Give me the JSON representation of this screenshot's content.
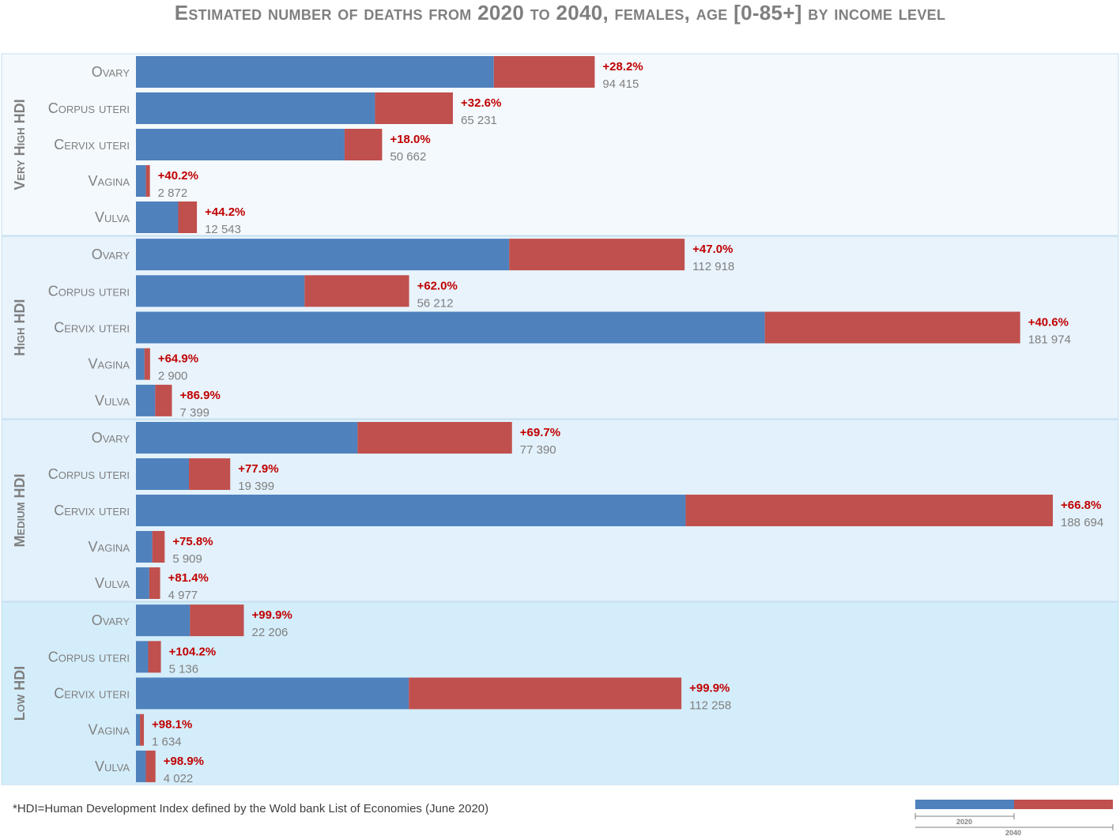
{
  "chart_data": {
    "type": "bar",
    "orientation": "horizontal",
    "stacked": true,
    "title": "Estimated number of deaths from 2020 to 2040, females, age [0-85+] by income level",
    "footnote": "*HDI=Human Development Index defined by the Wold bank List of Economies (June 2020)",
    "legend": {
      "position": "bottom-right",
      "entries": [
        "2020",
        "2040"
      ]
    },
    "colors": {
      "y2020": "#4f81bd",
      "increase": "#c0504d",
      "pct_text": "#c00000",
      "label_text": "#7f7f7f"
    },
    "xlim": [
      0,
      190000
    ],
    "groups": [
      {
        "name": "Very High HDI",
        "bg": "#f4f9fd",
        "rows": [
          {
            "label": "Ovary",
            "pct": "+28.2%",
            "value": 94415,
            "value_label": "94 415"
          },
          {
            "label": "Corpus uteri",
            "pct": "+32.6%",
            "value": 65231,
            "value_label": "65 231"
          },
          {
            "label": "Cervix uteri",
            "pct": "+18.0%",
            "value": 50662,
            "value_label": "50 662"
          },
          {
            "label": "Vagina",
            "pct": "+40.2%",
            "value": 2872,
            "value_label": "2 872"
          },
          {
            "label": "Vulva",
            "pct": "+44.2%",
            "value": 12543,
            "value_label": "12 543"
          }
        ]
      },
      {
        "name": "High HDI",
        "bg": "#e8f3fc",
        "rows": [
          {
            "label": "Ovary",
            "pct": "+47.0%",
            "value": 112918,
            "value_label": "112 918"
          },
          {
            "label": "Corpus uteri",
            "pct": "+62.0%",
            "value": 56212,
            "value_label": "56 212"
          },
          {
            "label": "Cervix uteri",
            "pct": "+40.6%",
            "value": 181974,
            "value_label": "181 974"
          },
          {
            "label": "Vagina",
            "pct": "+64.9%",
            "value": 2900,
            "value_label": "2 900"
          },
          {
            "label": "Vulva",
            "pct": "+86.9%",
            "value": 7399,
            "value_label": "7 399"
          }
        ]
      },
      {
        "name": "Medium HDI",
        "bg": "#e2f1fb",
        "rows": [
          {
            "label": "Ovary",
            "pct": "+69.7%",
            "value": 77390,
            "value_label": "77 390"
          },
          {
            "label": "Corpus uteri",
            "pct": "+77.9%",
            "value": 19399,
            "value_label": "19 399"
          },
          {
            "label": "Cervix uteri",
            "pct": "+66.8%",
            "value": 188694,
            "value_label": "188 694"
          },
          {
            "label": "Vagina",
            "pct": "+75.8%",
            "value": 5909,
            "value_label": "5 909"
          },
          {
            "label": "Vulva",
            "pct": "+81.4%",
            "value": 4977,
            "value_label": "4 977"
          }
        ]
      },
      {
        "name": "Low HDI",
        "bg": "#d4edfa",
        "rows": [
          {
            "label": "Ovary",
            "pct": "+99.9%",
            "value": 22206,
            "value_label": "22 206"
          },
          {
            "label": "Corpus uteri",
            "pct": "+104.2%",
            "value": 5136,
            "value_label": "5 136"
          },
          {
            "label": "Cervix uteri",
            "pct": "+99.9%",
            "value": 112258,
            "value_label": "112 258"
          },
          {
            "label": "Vagina",
            "pct": "+98.1%",
            "value": 1634,
            "value_label": "1 634"
          },
          {
            "label": "Vulva",
            "pct": "+98.9%",
            "value": 4022,
            "value_label": "4 022"
          }
        ]
      }
    ]
  }
}
